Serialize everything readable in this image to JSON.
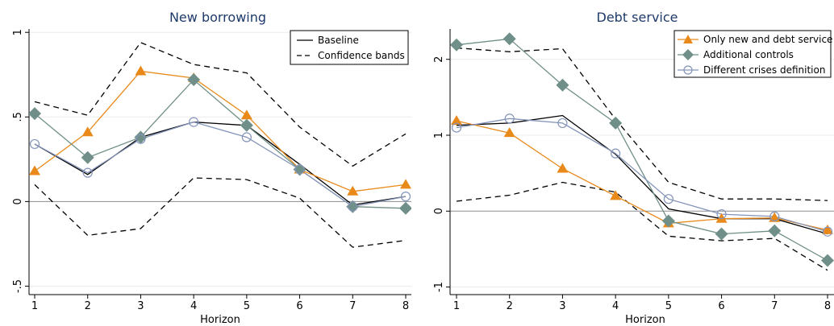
{
  "chart_data": [
    {
      "type": "line",
      "title": "New borrowing",
      "xlabel": "Horizon",
      "ylabel": "",
      "x": [
        1,
        2,
        3,
        4,
        5,
        6,
        7,
        8
      ],
      "xticks": [
        "1",
        "2",
        "3",
        "4",
        "5",
        "6",
        "7",
        "8"
      ],
      "ylim": [
        -0.55,
        1.02
      ],
      "yticks": [
        -0.5,
        0,
        0.5,
        1
      ],
      "ytick_labels": [
        "-.5",
        "0",
        ".5",
        "1"
      ],
      "grid": true,
      "legend_position": "top-right",
      "series": [
        {
          "name": "Baseline",
          "style": "solid",
          "marker": "none",
          "color": "#000000",
          "values": [
            0.34,
            0.16,
            0.38,
            0.47,
            0.45,
            0.22,
            -0.02,
            0.03
          ]
        },
        {
          "name": "Confidence bands",
          "style": "dashed",
          "marker": "none",
          "color": "#000000",
          "values": [
            0.59,
            0.51,
            0.94,
            0.81,
            0.76,
            0.44,
            0.21,
            0.4
          ]
        },
        {
          "style": "dashed",
          "marker": "none",
          "color": "#000000",
          "values": [
            0.1,
            -0.2,
            -0.16,
            0.14,
            0.13,
            0.02,
            -0.27,
            -0.23
          ]
        },
        {
          "style": "solid",
          "marker": "triangle",
          "color": "#e8891a",
          "values": [
            0.18,
            0.41,
            0.77,
            0.73,
            0.51,
            0.19,
            0.06,
            0.1
          ]
        },
        {
          "style": "solid",
          "marker": "diamond",
          "color": "#6f8f88",
          "values": [
            0.52,
            0.26,
            0.38,
            0.72,
            0.45,
            0.19,
            -0.03,
            -0.04
          ]
        },
        {
          "style": "solid",
          "marker": "circle",
          "color": "#8393b8",
          "values": [
            0.34,
            0.17,
            0.37,
            0.47,
            0.38,
            0.19,
            -0.03,
            0.03
          ]
        }
      ]
    },
    {
      "type": "line",
      "title": "Debt service",
      "xlabel": "Horizon",
      "ylabel": "",
      "x": [
        1,
        2,
        3,
        4,
        5,
        6,
        7,
        8
      ],
      "xticks": [
        "1",
        "2",
        "3",
        "4",
        "5",
        "6",
        "7",
        "8"
      ],
      "ylim": [
        -1.1,
        2.4
      ],
      "yticks": [
        -1,
        0,
        1,
        2
      ],
      "ytick_labels": [
        "-1",
        "0",
        "1",
        "2"
      ],
      "grid": true,
      "legend_position": "top-right",
      "series": [
        {
          "style": "solid",
          "marker": "none",
          "color": "#000000",
          "values": [
            1.13,
            1.16,
            1.26,
            0.75,
            0.03,
            -0.1,
            -0.1,
            -0.3
          ]
        },
        {
          "style": "dashed",
          "marker": "none",
          "color": "#000000",
          "values": [
            2.15,
            2.1,
            2.14,
            1.21,
            0.38,
            0.16,
            0.16,
            0.14
          ]
        },
        {
          "style": "dashed",
          "marker": "none",
          "color": "#000000",
          "values": [
            0.13,
            0.21,
            0.38,
            0.25,
            -0.33,
            -0.39,
            -0.36,
            -0.78
          ]
        },
        {
          "name": "Only new and debt service",
          "style": "solid",
          "marker": "triangle",
          "color": "#e8891a",
          "values": [
            1.19,
            1.03,
            0.56,
            0.2,
            -0.16,
            -0.1,
            -0.09,
            -0.25
          ]
        },
        {
          "name": "Additional controls",
          "style": "solid",
          "marker": "diamond",
          "color": "#6f8f88",
          "values": [
            2.19,
            2.27,
            1.66,
            1.16,
            -0.13,
            -0.3,
            -0.26,
            -0.65
          ]
        },
        {
          "name": "Different crises definition",
          "style": "solid",
          "marker": "circle",
          "color": "#8393b8",
          "values": [
            1.1,
            1.22,
            1.16,
            0.76,
            0.16,
            -0.04,
            -0.07,
            -0.27
          ]
        }
      ]
    }
  ]
}
